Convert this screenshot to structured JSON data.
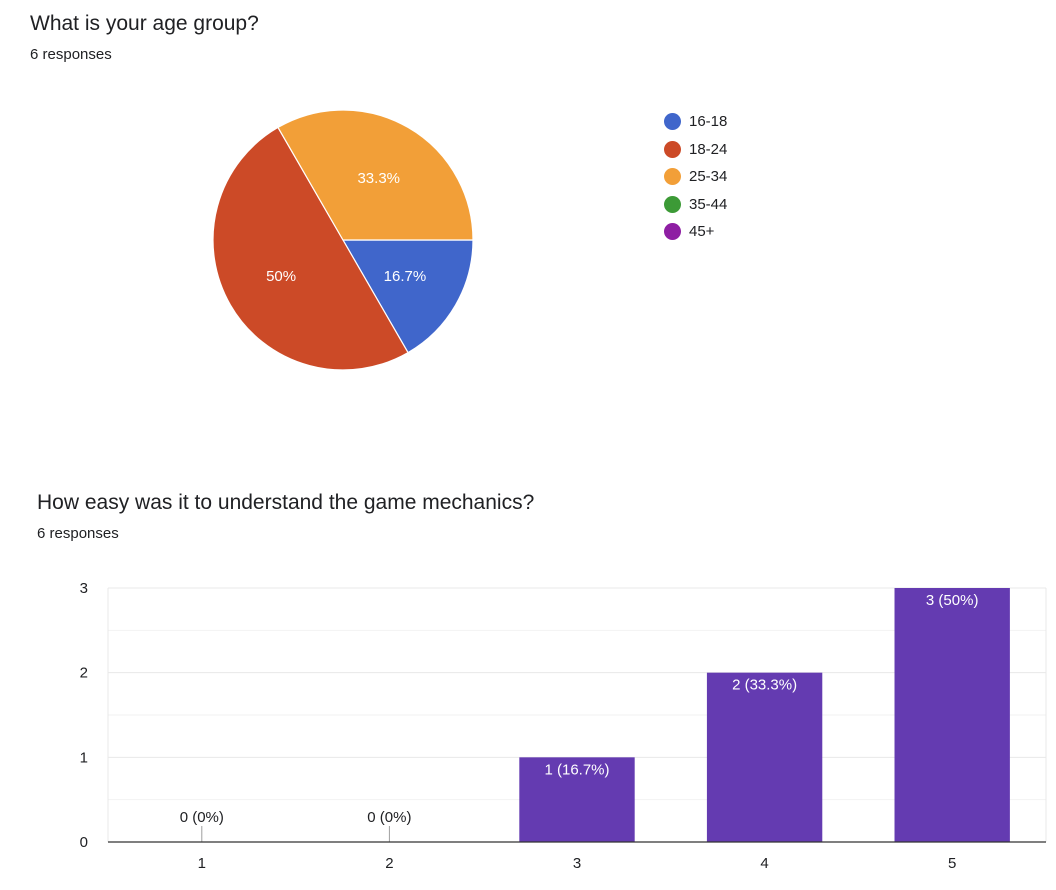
{
  "questions": [
    {
      "title": "What is your age group?",
      "responses": "6 responses"
    },
    {
      "title": "How easy was it to understand the game mechanics?",
      "responses": "6 responses"
    }
  ],
  "chart_data": [
    {
      "type": "pie",
      "title": "What is your age group?",
      "labels": [
        "16-18",
        "18-24",
        "25-34",
        "35-44",
        "45+"
      ],
      "values": [
        1,
        3,
        2,
        0,
        0
      ],
      "percent_labels": [
        "16.7%",
        "50%",
        "33.3%",
        "",
        ""
      ],
      "colors": [
        "#4066cb",
        "#cc4a27",
        "#f29f38",
        "#3c9a36",
        "#8e1ea3"
      ],
      "legend_position": "right"
    },
    {
      "type": "bar",
      "title": "How easy was it to understand the game mechanics?",
      "categories": [
        "1",
        "2",
        "3",
        "4",
        "5"
      ],
      "values": [
        0,
        0,
        1,
        2,
        3
      ],
      "data_labels": [
        "0 (0%)",
        "0 (0%)",
        "1 (16.7%)",
        "2 (33.3%)",
        "3 (50%)"
      ],
      "yticks": [
        "0",
        "1",
        "2",
        "3"
      ],
      "ylim": [
        0,
        3
      ],
      "grid": true,
      "bar_color": "#643bb1"
    }
  ]
}
